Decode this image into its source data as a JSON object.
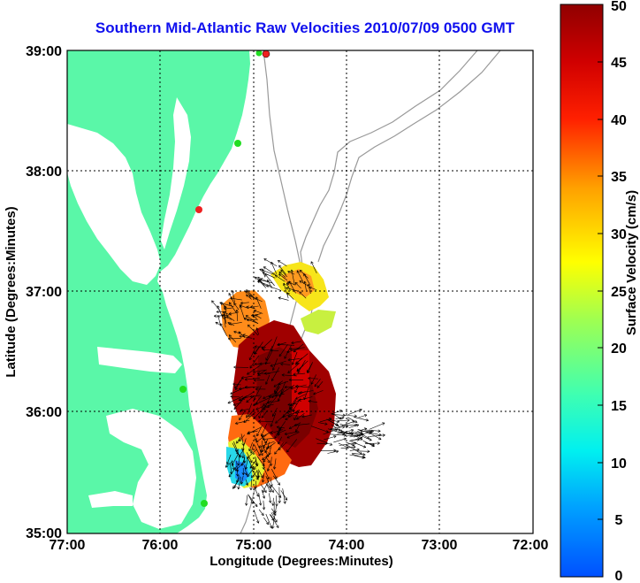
{
  "chart_data": {
    "type": "heatmap",
    "title": "Southern Mid-Atlantic Raw Velocities 2010/07/09 0500 GMT",
    "xlabel": "Longitude (Degrees:Minutes)",
    "ylabel": "Latitude (Degrees:Minutes)",
    "x_ticks": [
      "77:00",
      "76:00",
      "75:00",
      "74:00",
      "73:00",
      "72:00"
    ],
    "y_ticks": [
      "39:00",
      "38:00",
      "37:00",
      "36:00",
      "35:00"
    ],
    "xlim": [
      -77,
      -72
    ],
    "ylim": [
      35,
      39
    ],
    "grid": true,
    "colorbar": {
      "label": "Surface Velocity (cm/s)",
      "ticks": [
        "50",
        "45",
        "40",
        "35",
        "30",
        "25",
        "20",
        "15",
        "10",
        "5",
        "0"
      ],
      "range": [
        0,
        50
      ],
      "colormap": "jet"
    },
    "colors": {
      "land": "#5af7a8",
      "water": "#ffffff",
      "bathymetry": "#999999",
      "station_green": "#22dd22",
      "station_red": "#ee2020",
      "vector": "#000000"
    }
  }
}
